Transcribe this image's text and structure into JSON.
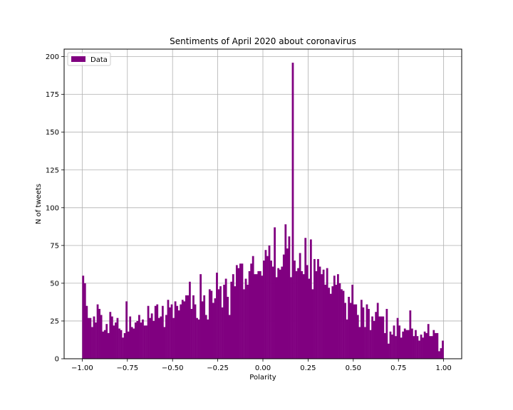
{
  "chart_data": {
    "type": "bar",
    "title": "Sentiments of April 2020 about coronavirus",
    "xlabel": "Polarity",
    "ylabel": "N of tweets",
    "xlim": [
      -1.1,
      1.1
    ],
    "ylim": [
      0,
      205
    ],
    "xticks": [
      -1.0,
      -0.75,
      -0.5,
      -0.25,
      0.0,
      0.25,
      0.5,
      0.75,
      1.0
    ],
    "xtick_labels": [
      "−1.00",
      "−0.75",
      "−0.50",
      "−0.25",
      "0.00",
      "0.25",
      "0.50",
      "0.75",
      "1.00"
    ],
    "yticks": [
      0,
      25,
      50,
      75,
      100,
      125,
      150,
      175,
      200
    ],
    "ytick_labels": [
      "0",
      "25",
      "50",
      "75",
      "100",
      "125",
      "150",
      "175",
      "200"
    ],
    "grid": true,
    "legend_position": "top-left",
    "bin_range": [
      -1.0,
      1.0
    ],
    "bins": 200,
    "series": [
      {
        "name": "Data",
        "color": "#800080",
        "values": [
          55,
          50,
          35,
          27,
          27,
          21,
          28,
          24,
          36,
          33,
          29,
          18,
          19,
          23,
          17,
          31,
          28,
          22,
          24,
          27,
          20,
          19,
          14,
          17,
          38,
          18,
          28,
          21,
          20,
          24,
          25,
          29,
          24,
          26,
          22,
          22,
          35,
          27,
          30,
          25,
          35,
          36,
          27,
          28,
          35,
          21,
          29,
          39,
          34,
          36,
          27,
          38,
          35,
          32,
          36,
          39,
          38,
          42,
          42,
          51,
          33,
          42,
          36,
          27,
          26,
          56,
          38,
          42,
          29,
          26,
          46,
          45,
          37,
          40,
          57,
          46,
          48,
          34,
          49,
          53,
          41,
          29,
          51,
          56,
          48,
          62,
          60,
          63,
          63,
          46,
          53,
          49,
          58,
          63,
          68,
          56,
          56,
          58,
          58,
          55,
          65,
          72,
          68,
          75,
          65,
          61,
          87,
          54,
          60,
          59,
          61,
          69,
          89,
          73,
          81,
          54,
          196,
          65,
          58,
          60,
          70,
          58,
          56,
          80,
          62,
          53,
          79,
          46,
          66,
          58,
          66,
          61,
          56,
          59,
          49,
          60,
          47,
          43,
          48,
          55,
          49,
          56,
          50,
          46,
          45,
          37,
          26,
          41,
          37,
          49,
          36,
          36,
          29,
          21,
          39,
          34,
          21,
          36,
          33,
          19,
          28,
          25,
          31,
          37,
          28,
          28,
          28,
          17,
          33,
          10,
          18,
          16,
          22,
          15,
          27,
          22,
          14,
          18,
          20,
          19,
          19,
          32,
          20,
          15,
          19,
          15,
          12,
          16,
          14,
          18,
          17,
          23,
          15,
          15,
          19,
          17,
          17,
          5,
          7,
          12
        ]
      }
    ]
  }
}
